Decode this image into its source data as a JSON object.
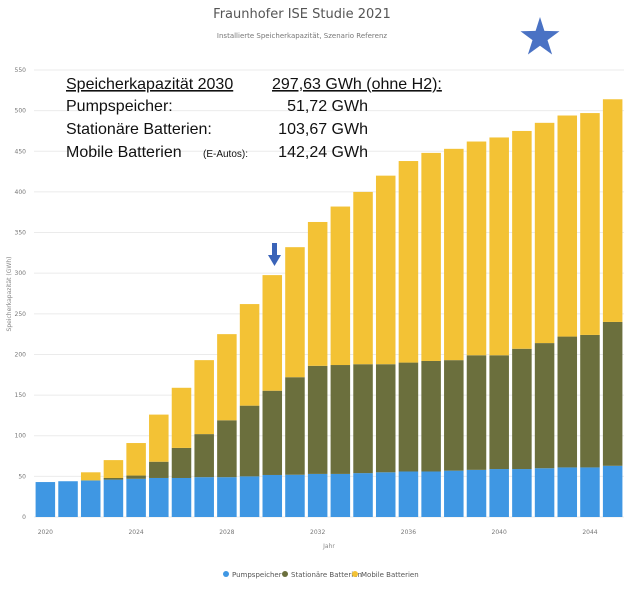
{
  "chart_data": {
    "type": "bar",
    "stacked": true,
    "title": "Fraunhofer ISE Studie 2021",
    "subtitle": "Installierte Speicherkapazität, Szenario Referenz",
    "xlabel": "Jahr",
    "ylabel": "Speicherkapazität (GWh)",
    "ylim": [
      0,
      550
    ],
    "yticks": [
      0,
      50,
      100,
      150,
      200,
      250,
      300,
      350,
      400,
      450,
      500,
      550
    ],
    "xticks": [
      "2020",
      "2024",
      "2028",
      "2032",
      "2036",
      "2040",
      "2044"
    ],
    "grid": true,
    "legend_position": "bottom",
    "categories": [
      "2020",
      "2021",
      "2022",
      "2023",
      "2024",
      "2025",
      "2026",
      "2027",
      "2028",
      "2029",
      "2030",
      "2031",
      "2032",
      "2033",
      "2034",
      "2035",
      "2036",
      "2037",
      "2038",
      "2039",
      "2040",
      "2041",
      "2042",
      "2043",
      "2044",
      "2045"
    ],
    "series": [
      {
        "name": "Pumpspeicher",
        "color": "#3f97e3",
        "values": [
          43,
          44,
          45,
          46,
          47,
          48,
          48,
          49,
          49,
          50,
          51.72,
          52,
          53,
          53,
          54,
          55,
          56,
          56,
          57,
          58,
          59,
          59,
          60,
          61,
          61,
          63
        ]
      },
      {
        "name": "Stationäre Batterien",
        "color": "#6b6f3d",
        "values": [
          0,
          0,
          0,
          2,
          4,
          20,
          37,
          53,
          70,
          87,
          103.67,
          120,
          133,
          134,
          134,
          133,
          134,
          136,
          136,
          141,
          140,
          148,
          154,
          161,
          163,
          177
        ]
      },
      {
        "name": "Mobile Batterien",
        "color": "#f3c235",
        "values": [
          0,
          0,
          10,
          22,
          40,
          58,
          74,
          91,
          106,
          125,
          142.24,
          160,
          177,
          195,
          212,
          232,
          248,
          256,
          260,
          263,
          268,
          268,
          271,
          272,
          273,
          274
        ]
      }
    ]
  },
  "annotation": {
    "header_label": "Speicherkapazität 2030",
    "header_value": "297,63 GWh (ohne H2):",
    "rows": [
      {
        "label": "Pumpspeicher:",
        "value": "51,72 GWh"
      },
      {
        "label": "Stationäre Batterien:",
        "value": "103,67 GWh"
      },
      {
        "label": "Mobile Batterien",
        "label_small": "(E-Autos):",
        "value": "142,24 GWh"
      }
    ]
  },
  "star_color": "#4a72c4",
  "arrow_color": "#3a63b8"
}
